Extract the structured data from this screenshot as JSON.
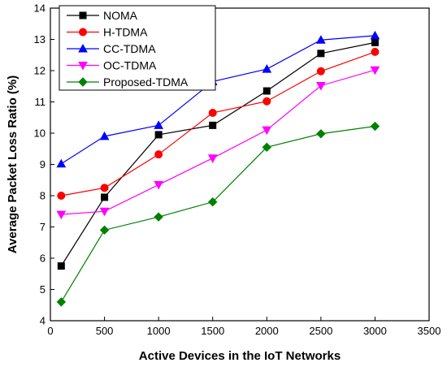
{
  "chart_data": {
    "type": "line",
    "xlabel": "Active Devices in the IoT Networks",
    "ylabel": "Average Packet Loss Ratio (%)",
    "xlim": [
      0,
      3500
    ],
    "ylim": [
      4,
      14
    ],
    "xticks": [
      0,
      500,
      1000,
      1500,
      2000,
      2500,
      3000,
      3500
    ],
    "yticks": [
      4,
      5,
      6,
      7,
      8,
      9,
      10,
      11,
      12,
      13,
      14
    ],
    "grid": false,
    "legend_position": "top-left",
    "x": [
      100,
      500,
      1000,
      1500,
      2000,
      2500,
      3000
    ],
    "series": [
      {
        "name": "NOMA",
        "color": "#000000",
        "marker": "square",
        "values": [
          5.75,
          7.95,
          9.95,
          10.25,
          11.35,
          12.55,
          12.9
        ]
      },
      {
        "name": "H-TDMA",
        "color": "#ff0000",
        "marker": "circle",
        "values": [
          8.0,
          8.25,
          9.32,
          10.65,
          11.02,
          11.98,
          12.6
        ]
      },
      {
        "name": "CC-TDMA",
        "color": "#0000ff",
        "marker": "triangle-up",
        "values": [
          9.02,
          9.9,
          10.25,
          11.65,
          12.05,
          12.98,
          13.12
        ]
      },
      {
        "name": "OC-TDMA",
        "color": "#ff00ff",
        "marker": "triangle-down",
        "values": [
          7.4,
          7.5,
          8.35,
          9.2,
          10.1,
          11.52,
          12.02
        ]
      },
      {
        "name": "Proposed-TDMA",
        "color": "#008000",
        "marker": "diamond",
        "values": [
          4.6,
          6.9,
          7.32,
          7.8,
          9.55,
          9.98,
          10.22
        ]
      }
    ]
  }
}
